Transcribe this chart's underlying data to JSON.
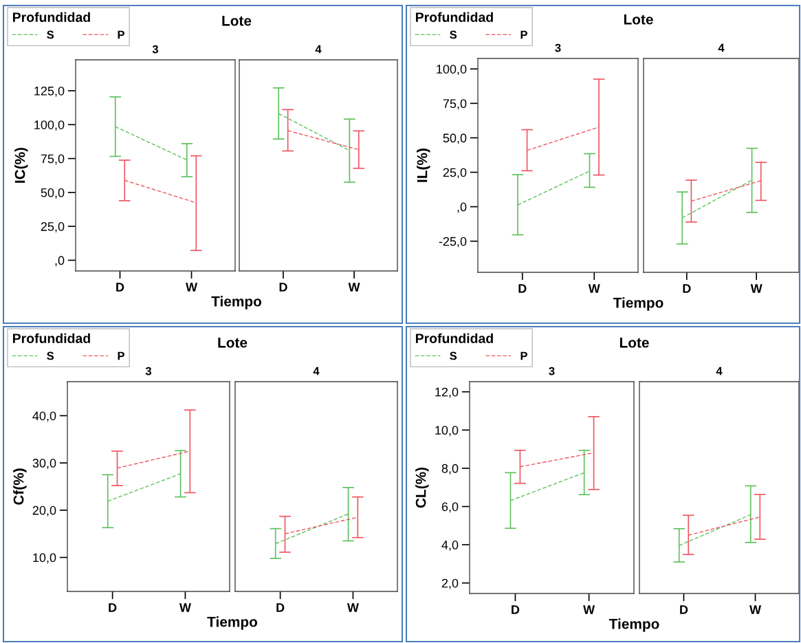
{
  "chart_data": [
    {
      "type": "line",
      "title": "Lote",
      "subtitle": "3",
      "xlabel": "Tiempo",
      "ylabel": "IC(%)",
      "legend_title": "Profundidad",
      "legend": "top left",
      "line_style": "dashed",
      "marker": "none",
      "categories": [
        "D",
        "W"
      ],
      "ylim": [
        -7.9,
        147.8
      ],
      "yticks": [
        {
          "value": 0,
          "label": ",0"
        },
        {
          "value": 25,
          "label": "25,0"
        },
        {
          "value": 50,
          "label": "50,0"
        },
        {
          "value": 75,
          "label": "75,0"
        },
        {
          "value": 100,
          "label": "100,0"
        },
        {
          "value": 125,
          "label": "125,0"
        }
      ],
      "series": [
        {
          "name": "S",
          "color": "#5cc25c",
          "values": [
            98.5,
            74.0
          ],
          "errors": [
            [
              76.6,
              120.5
            ],
            [
              61.6,
              86.0
            ]
          ]
        },
        {
          "name": "P",
          "color": "#ee5560",
          "values": [
            58.9,
            42.4
          ],
          "errors": [
            [
              43.9,
              73.8
            ],
            [
              7.2,
              77.0
            ]
          ]
        }
      ]
    },
    {
      "type": "line",
      "subtitle": "4",
      "line_style": "dashed",
      "marker": "none",
      "tick_labels": "x",
      "categories": [
        "D",
        "W"
      ],
      "ylim": [
        -7.9,
        147.8
      ],
      "series": [
        {
          "color": "#5cc25c",
          "values": [
            108.2,
            80.9
          ],
          "errors": [
            [
              89.4,
              127.1
            ],
            [
              57.6,
              104.1
            ]
          ]
        },
        {
          "color": "#ee5560",
          "values": [
            95.6,
            81.5
          ],
          "errors": [
            [
              80.6,
              111.1
            ],
            [
              67.8,
              95.4
            ]
          ]
        }
      ]
    },
    {
      "type": "line",
      "title": "Lote",
      "subtitle": "3",
      "xlabel": "Tiempo",
      "ylabel": "IL(%)",
      "legend_title": "Profundidad",
      "legend": "top left",
      "line_style": "dashed",
      "marker": "none",
      "categories": [
        "D",
        "W"
      ],
      "ylim": [
        -47.6,
        107.6
      ],
      "yticks": [
        {
          "value": -25,
          "label": "-25,0"
        },
        {
          "value": 0,
          "label": ",0"
        },
        {
          "value": 25,
          "label": "25,0"
        },
        {
          "value": 50,
          "label": "50,0"
        },
        {
          "value": 75,
          "label": "75,0"
        },
        {
          "value": 100,
          "label": "100,0"
        }
      ],
      "series": [
        {
          "name": "S",
          "color": "#5cc25c",
          "values": [
            1.3,
            25.9
          ],
          "errors": [
            [
              -20.4,
              23.3
            ],
            [
              14.1,
              38.5
            ]
          ]
        },
        {
          "name": "P",
          "color": "#ee5560",
          "values": [
            40.9,
            57.8
          ],
          "errors": [
            [
              26.1,
              55.9
            ],
            [
              23.0,
              92.6
            ]
          ]
        }
      ]
    },
    {
      "type": "line",
      "subtitle": "4",
      "line_style": "dashed",
      "marker": "none",
      "tick_labels": "x",
      "categories": [
        "D",
        "W"
      ],
      "ylim": [
        -47.6,
        107.6
      ],
      "series": [
        {
          "color": "#5cc25c",
          "values": [
            -8.0,
            19.3
          ],
          "errors": [
            [
              -27.0,
              10.7
            ],
            [
              -4.1,
              42.4
            ]
          ]
        },
        {
          "color": "#ee5560",
          "values": [
            4.1,
            18.9
          ],
          "errors": [
            [
              -11.1,
              19.3
            ],
            [
              4.6,
              32.2
            ]
          ]
        }
      ]
    },
    {
      "type": "line",
      "title": "Lote",
      "subtitle": "3",
      "xlabel": "Tiempo",
      "ylabel": "Cf(%)",
      "legend_title": "Profundidad",
      "legend": "top left",
      "line_style": "dashed",
      "marker": "none",
      "categories": [
        "D",
        "W"
      ],
      "ylim": [
        2.8,
        47.2
      ],
      "yticks": [
        {
          "value": 10,
          "label": "10,0"
        },
        {
          "value": 20,
          "label": "20,0"
        },
        {
          "value": 30,
          "label": "30,0"
        },
        {
          "value": 40,
          "label": "40,0"
        }
      ],
      "series": [
        {
          "name": "S",
          "color": "#5cc25c",
          "values": [
            21.9,
            27.7
          ],
          "errors": [
            [
              16.3,
              27.5
            ],
            [
              22.8,
              32.6
            ]
          ]
        },
        {
          "name": "P",
          "color": "#ee5560",
          "values": [
            28.9,
            32.5
          ],
          "errors": [
            [
              25.2,
              32.5
            ],
            [
              23.7,
              41.2
            ]
          ]
        }
      ]
    },
    {
      "type": "line",
      "subtitle": "4",
      "line_style": "dashed",
      "marker": "none",
      "tick_labels": "x",
      "categories": [
        "D",
        "W"
      ],
      "ylim": [
        2.8,
        47.2
      ],
      "series": [
        {
          "color": "#5cc25c",
          "values": [
            12.9,
            19.2
          ],
          "errors": [
            [
              9.8,
              16.1
            ],
            [
              13.5,
              24.8
            ]
          ]
        },
        {
          "color": "#ee5560",
          "values": [
            15.0,
            18.5
          ],
          "errors": [
            [
              11.1,
              18.7
            ],
            [
              14.2,
              22.8
            ]
          ]
        }
      ]
    },
    {
      "type": "line",
      "title": "Lote",
      "subtitle": "3",
      "xlabel": "Tiempo",
      "ylabel": "CL(%)",
      "legend_title": "Profundidad",
      "legend": "top left",
      "line_style": "dashed",
      "marker": "none",
      "categories": [
        "D",
        "W"
      ],
      "ylim": [
        1.45,
        12.53
      ],
      "yticks": [
        {
          "value": 2,
          "label": "2,0"
        },
        {
          "value": 4,
          "label": "4,0"
        },
        {
          "value": 6,
          "label": "6,0"
        },
        {
          "value": 8,
          "label": "8,0"
        },
        {
          "value": 10,
          "label": "10,0"
        },
        {
          "value": 12,
          "label": "12,0"
        }
      ],
      "series": [
        {
          "name": "S",
          "color": "#5cc25c",
          "values": [
            6.31,
            7.77
          ],
          "errors": [
            [
              4.86,
              7.77
            ],
            [
              6.62,
              8.94
            ]
          ]
        },
        {
          "name": "P",
          "color": "#ee5560",
          "values": [
            8.08,
            8.81
          ],
          "errors": [
            [
              7.21,
              8.94
            ],
            [
              6.89,
              10.7
            ]
          ]
        }
      ]
    },
    {
      "type": "line",
      "subtitle": "4",
      "line_style": "dashed",
      "marker": "none",
      "tick_labels": "x",
      "categories": [
        "D",
        "W"
      ],
      "ylim": [
        1.45,
        12.53
      ],
      "series": [
        {
          "color": "#5cc25c",
          "values": [
            3.96,
            5.57
          ],
          "errors": [
            [
              3.1,
              4.84
            ],
            [
              4.12,
              7.08
            ]
          ]
        },
        {
          "color": "#ee5560",
          "values": [
            4.5,
            5.45
          ],
          "errors": [
            [
              3.49,
              5.54
            ],
            [
              4.29,
              6.63
            ]
          ]
        }
      ]
    }
  ]
}
